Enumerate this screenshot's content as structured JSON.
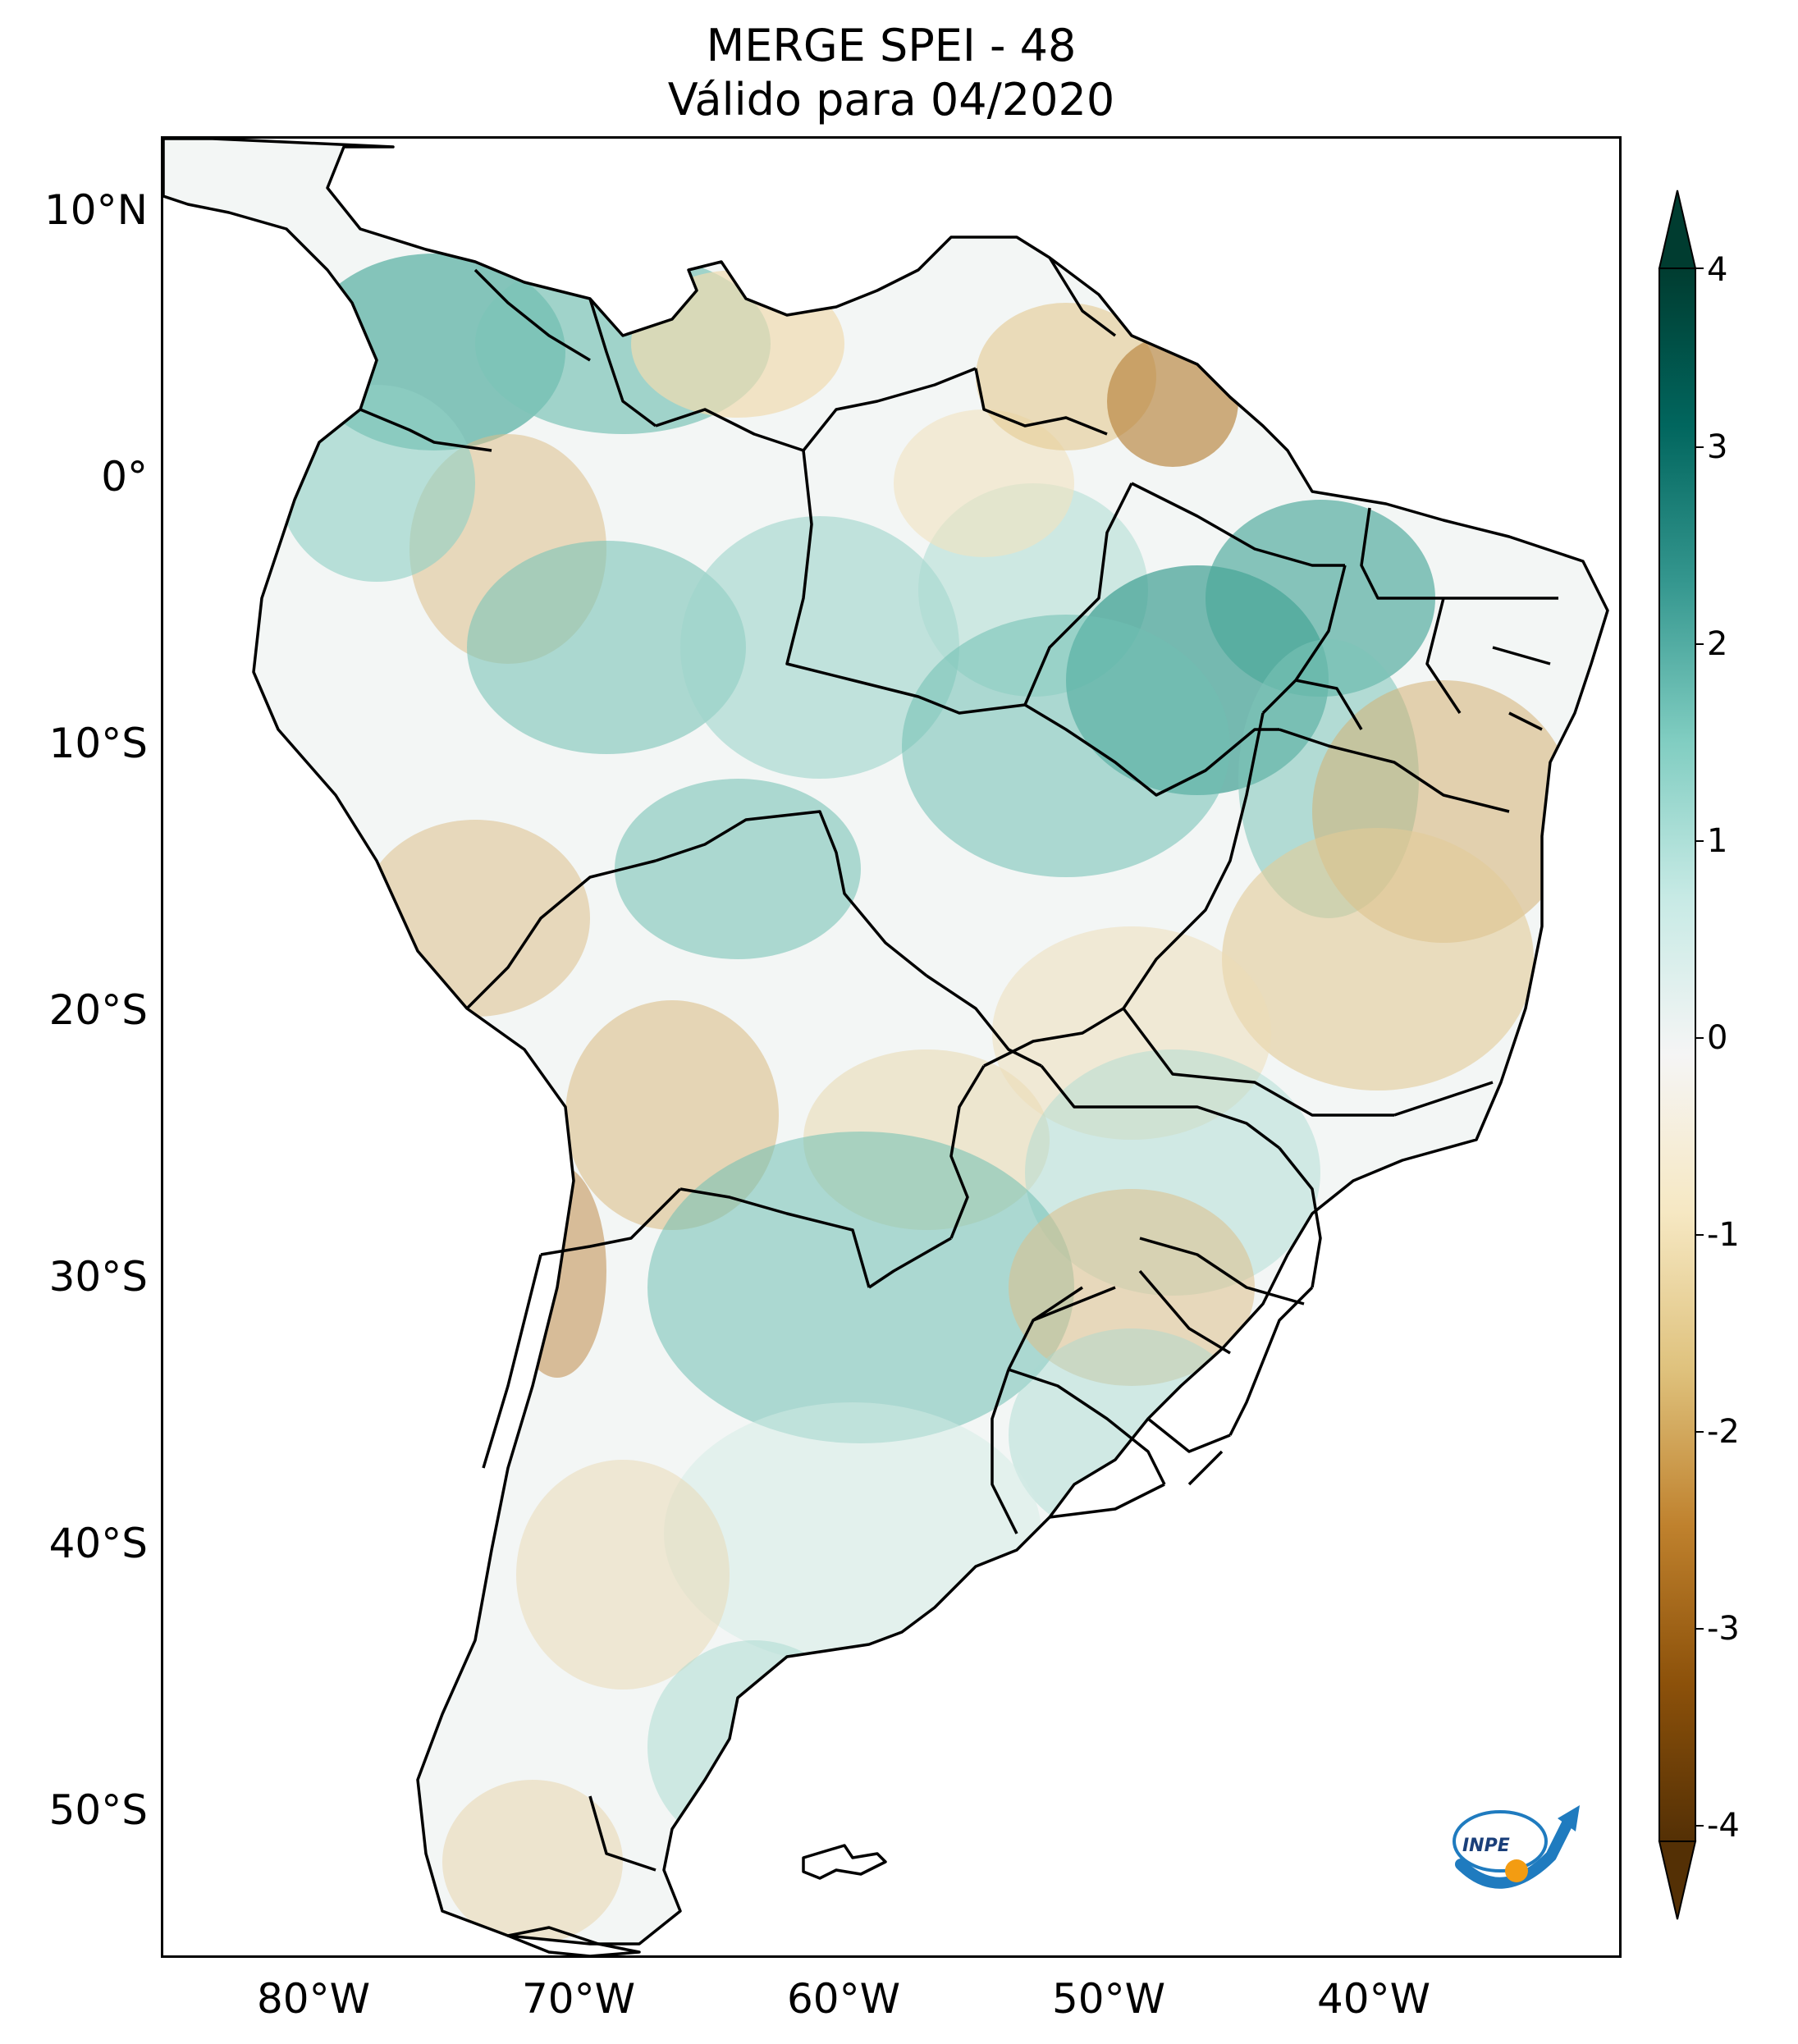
{
  "map": {
    "title_line1": "MERGE   SPEI - 48",
    "title_line2": "Válido para 04/2020",
    "latitude_labels": [
      "10°N",
      "0°",
      "10°S",
      "20°S",
      "30°S",
      "40°S",
      "50°S"
    ],
    "longitude_labels": [
      "80°W",
      "70°W",
      "60°W",
      "50°W",
      "40°W"
    ],
    "colorbar": {
      "ticks": [
        "4",
        "3",
        "2",
        "1",
        "0",
        "-1",
        "-2",
        "-3",
        "-4"
      ],
      "range": [
        -4,
        4
      ],
      "colors": [
        "#543005",
        "#8c510a",
        "#bf812d",
        "#dfc27d",
        "#f6e8c3",
        "#f5f5f5",
        "#c7eae5",
        "#80cdc1",
        "#35978f",
        "#01665e",
        "#003c30"
      ]
    },
    "logo_text": "INPE"
  }
}
